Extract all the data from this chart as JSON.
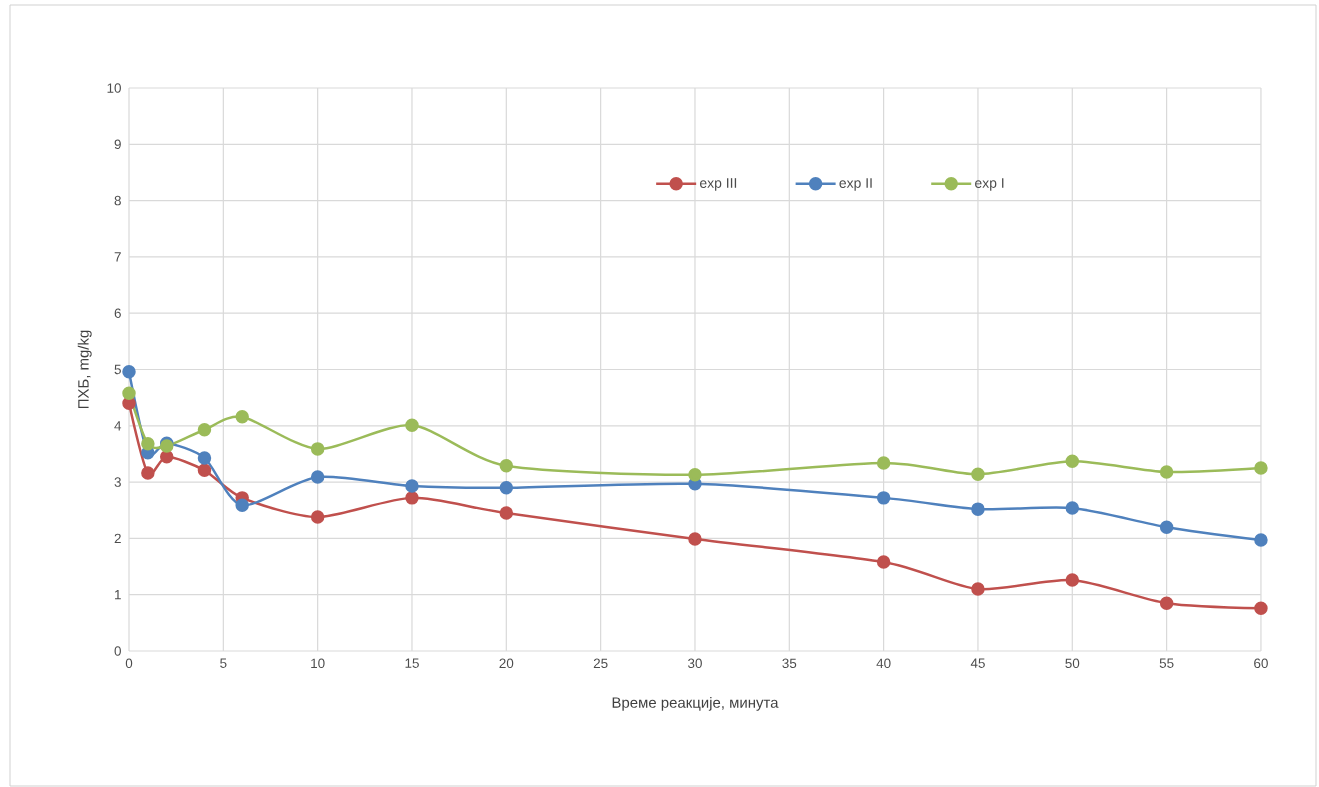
{
  "chart_data": {
    "type": "line",
    "xlabel": "Време реакције, минута",
    "ylabel": "ПХБ, mg/kg",
    "x": [
      0,
      1,
      2,
      4,
      6,
      10,
      15,
      20,
      30,
      40,
      45,
      50,
      55,
      60
    ],
    "series": [
      {
        "name": "exp III",
        "color": "#c0504d",
        "values": [
          4.4,
          3.16,
          3.45,
          3.21,
          2.72,
          2.38,
          2.72,
          2.45,
          1.99,
          1.58,
          1.1,
          1.26,
          0.85,
          0.76
        ]
      },
      {
        "name": "exp II",
        "color": "#4f81bd",
        "values": [
          4.96,
          3.52,
          3.69,
          3.43,
          2.59,
          3.09,
          2.93,
          2.9,
          2.97,
          2.72,
          2.52,
          2.54,
          2.2,
          1.97
        ]
      },
      {
        "name": "exp I",
        "color": "#9bbb59",
        "values": [
          4.58,
          3.68,
          3.64,
          3.93,
          4.16,
          3.59,
          4.01,
          3.29,
          3.13,
          3.34,
          3.14,
          3.37,
          3.18,
          3.25
        ]
      }
    ],
    "xlim": [
      0,
      60
    ],
    "xticks": [
      0,
      5,
      10,
      15,
      20,
      25,
      30,
      35,
      40,
      45,
      50,
      55,
      60
    ],
    "ylim": [
      0,
      10
    ],
    "yticks": [
      0,
      1,
      2,
      3,
      4,
      5,
      6,
      7,
      8,
      9,
      10
    ],
    "grid": true,
    "legend": "top",
    "marker": "circle",
    "line_style": "solid"
  }
}
